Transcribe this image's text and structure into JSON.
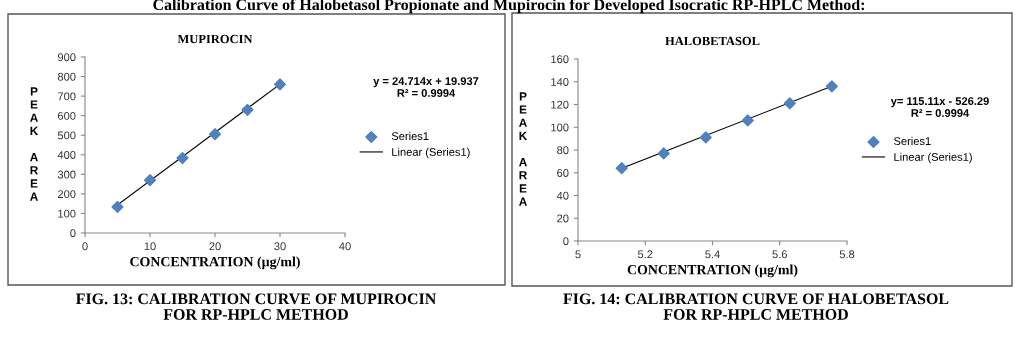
{
  "chart_data": [
    {
      "type": "scatter",
      "title": "MUPIROCIN",
      "xlabel": "CONCENTRATION (µg/ml)",
      "ylabel": "PEAK AREA",
      "annotations": [
        "Calibration Curve of Halobetasol Propionate and Mupirocin for Developed Isocratic RP-HPLC Method:",
        "y = 24.714x + 19.937\nR² = 0.9994",
        "FIG. 13: CALIBRATION CURVE OF MUPIROCIN\nFOR RP-HPLC METHOD"
      ],
      "x": [
        5,
        10,
        15,
        20,
        25,
        30
      ],
      "series": [
        {
          "name": "Series1",
          "color": "#4f81bd",
          "marker": "diamond",
          "values": [
            133,
            270,
            383,
            505,
            630,
            760
          ]
        },
        {
          "name": "Linear (Series1)",
          "type": "line",
          "color": "#000000",
          "marker": "none",
          "line_style": "solid",
          "x": [
            5,
            30
          ],
          "values": [
            143,
            761
          ]
        }
      ],
      "xlim": [
        0,
        40
      ],
      "xticks": [
        0,
        10,
        20,
        30,
        40
      ],
      "ylim": [
        0,
        900
      ],
      "yticks": [
        0,
        100,
        200,
        300,
        400,
        500,
        600,
        700,
        800,
        900
      ],
      "grid": false,
      "legend": "right"
    },
    {
      "type": "scatter",
      "title": "HALOBETASOL",
      "xlabel": "CONCENTRATION (µg/ml)",
      "ylabel": "PEAK AREA",
      "annotations": [
        "y= 115.11x - 526.29\nR² = 0.9994",
        "FIG. 14: CALIBRATION CURVE OF HALOBETASOL\nFOR RP-HPLC METHOD"
      ],
      "x": [
        5.13,
        5.255,
        5.38,
        5.505,
        5.63,
        5.755
      ],
      "series": [
        {
          "name": "Series1",
          "color": "#4f81bd",
          "marker": "diamond",
          "values": [
            64,
            77,
            91,
            106,
            121,
            136
          ]
        },
        {
          "name": "Linear (Series1)",
          "type": "line",
          "color": "#000000",
          "marker": "none",
          "line_style": "solid",
          "x": [
            5.13,
            5.755
          ],
          "values": [
            64,
            136
          ]
        }
      ],
      "xlim": [
        5,
        5.8
      ],
      "xticks": [
        5,
        5.2,
        5.4,
        5.6,
        5.8
      ],
      "ylim": [
        0,
        160
      ],
      "yticks": [
        0,
        20,
        40,
        60,
        80,
        100,
        120,
        140,
        160
      ],
      "grid": false,
      "legend": "right"
    }
  ]
}
